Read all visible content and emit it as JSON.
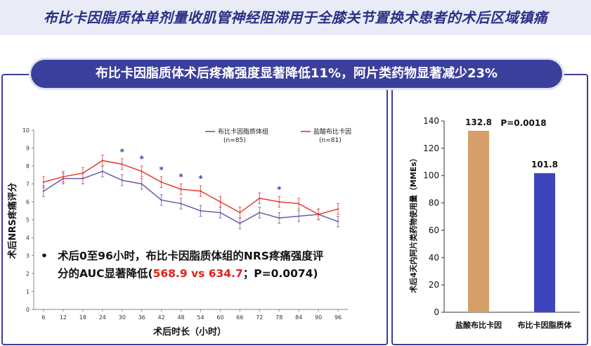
{
  "header": {
    "title": "布比卡因脂质体单剂量收肌管神经阻滞用于全膝关节置换术患者的术后区域镇痛"
  },
  "banner": {
    "text": "布比卡因脂质体术后疼痛强度显著降低11%，阿片类药物显著减少23%"
  },
  "colors": {
    "header_bg": "#e9ecf7",
    "title_text": "#2a2f86",
    "banner_bg": "#3b3f9c",
    "liposome_series": "#6b5aa6",
    "hcl_series": "#e8372e",
    "bar_hcl": "#d6a06a",
    "bar_liposome": "#3d45be",
    "highlight_red": "#e0201b"
  },
  "bullet": {
    "symbol": "•",
    "line1": "术后0至96小时，布比卡因脂质体组的NRS疼痛强度评",
    "line2_prefix": "分的AUC显著降低(",
    "line2_red": "568.9 vs 634.7",
    "line2_suffix": "；P=0.0074)"
  },
  "chart_data": [
    {
      "type": "line",
      "xlabel": "术后时长（小时）",
      "ylabel": "术后NRS疼痛评分",
      "ylim": [
        0,
        10
      ],
      "y_ticks": [
        0,
        1,
        2,
        3,
        4,
        5,
        6,
        7,
        8,
        9,
        10
      ],
      "x": [
        6,
        12,
        18,
        24,
        30,
        36,
        42,
        48,
        54,
        60,
        66,
        72,
        78,
        84,
        90,
        96
      ],
      "legend_placement": "top",
      "series": [
        {
          "name": "布比卡因脂质体组",
          "n": "(n=85)",
          "values": [
            6.6,
            7.3,
            7.3,
            7.7,
            7.2,
            7.0,
            6.1,
            5.9,
            5.5,
            5.4,
            4.8,
            5.4,
            5.1,
            5.2,
            5.3,
            4.9
          ],
          "errors": [
            0.3,
            0.3,
            0.3,
            0.3,
            0.3,
            0.3,
            0.3,
            0.3,
            0.3,
            0.3,
            0.3,
            0.3,
            0.3,
            0.3,
            0.3,
            0.3
          ]
        },
        {
          "name": "盐酸布比卡因",
          "n": "(n=81)",
          "values": [
            7.1,
            7.4,
            7.6,
            8.3,
            8.1,
            7.7,
            7.1,
            6.7,
            6.6,
            6.0,
            5.4,
            6.2,
            6.0,
            5.9,
            5.3,
            5.6
          ],
          "errors": [
            0.3,
            0.3,
            0.3,
            0.3,
            0.3,
            0.3,
            0.3,
            0.3,
            0.3,
            0.3,
            0.3,
            0.3,
            0.3,
            0.3,
            0.3,
            0.3
          ]
        }
      ],
      "significance_marks": [
        {
          "x": 30,
          "label": "*"
        },
        {
          "x": 36,
          "label": "*"
        },
        {
          "x": 42,
          "label": "*"
        },
        {
          "x": 48,
          "label": "*"
        },
        {
          "x": 54,
          "label": "*"
        },
        {
          "x": 78,
          "label": "*"
        }
      ]
    },
    {
      "type": "bar",
      "ylabel": "术后4天内阿片类药物使用量（MMEs）",
      "ylim": [
        0,
        140
      ],
      "y_ticks": [
        0,
        20,
        40,
        60,
        80,
        100,
        120,
        140
      ],
      "categories": [
        "盐酸布比卡因",
        "布比卡因脂质体"
      ],
      "values": [
        132.8,
        101.8
      ],
      "data_labels": [
        "132.8",
        "101.8"
      ],
      "p_value": "P=0.0018"
    }
  ]
}
